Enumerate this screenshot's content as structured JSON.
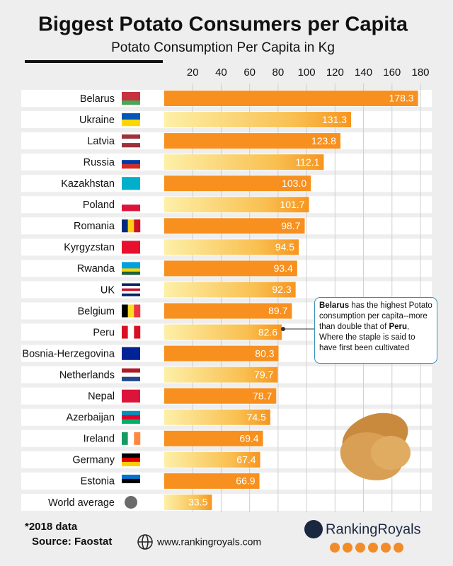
{
  "chart_data": {
    "type": "bar",
    "orientation": "horizontal",
    "title": "Biggest Potato Consumers per Capita",
    "subtitle": "Potato Consumption Per Capita in Kg",
    "categories": [
      "Belarus",
      "Ukraine",
      "Latvia",
      "Russia",
      "Kazakhstan",
      "Poland",
      "Romania",
      "Kyrgyzstan",
      "Rwanda",
      "UK",
      "Belgium",
      "Peru",
      "Bosnia-Herzegovina",
      "Netherlands",
      "Nepal",
      "Azerbaijan",
      "Ireland",
      "Germany",
      "Estonia",
      "World average"
    ],
    "values": [
      178.3,
      131.3,
      123.8,
      112.1,
      103.0,
      101.7,
      98.7,
      94.5,
      93.4,
      92.3,
      89.7,
      82.6,
      80.3,
      79.7,
      78.7,
      74.5,
      69.4,
      67.4,
      66.9,
      33.5
    ],
    "value_labels": [
      "178.3",
      "131.3",
      "123.8",
      "112.1",
      "103.0",
      "101.7",
      "98.7",
      "94.5",
      "93.4",
      "92.3",
      "89.7",
      "82.6",
      "80.3",
      "79.7",
      "78.7",
      "74.5",
      "69.4",
      "67.4",
      "66.9",
      "33.5"
    ],
    "color": "#f7901e",
    "xlim": [
      0,
      180
    ],
    "xticks": [
      20,
      40,
      60,
      80,
      100,
      120,
      140,
      160,
      180
    ],
    "grid": true,
    "annotation": [
      "Belarus",
      " has the highest Potato consumption per capita--more than double that of ",
      "Peru",
      ", Where the  staple is said to have first been cultivated"
    ],
    "footnote": "*2018 data",
    "source": "Source: Faostat",
    "website": "www.rankingroyals.com",
    "brand": "RankingRoyals"
  }
}
